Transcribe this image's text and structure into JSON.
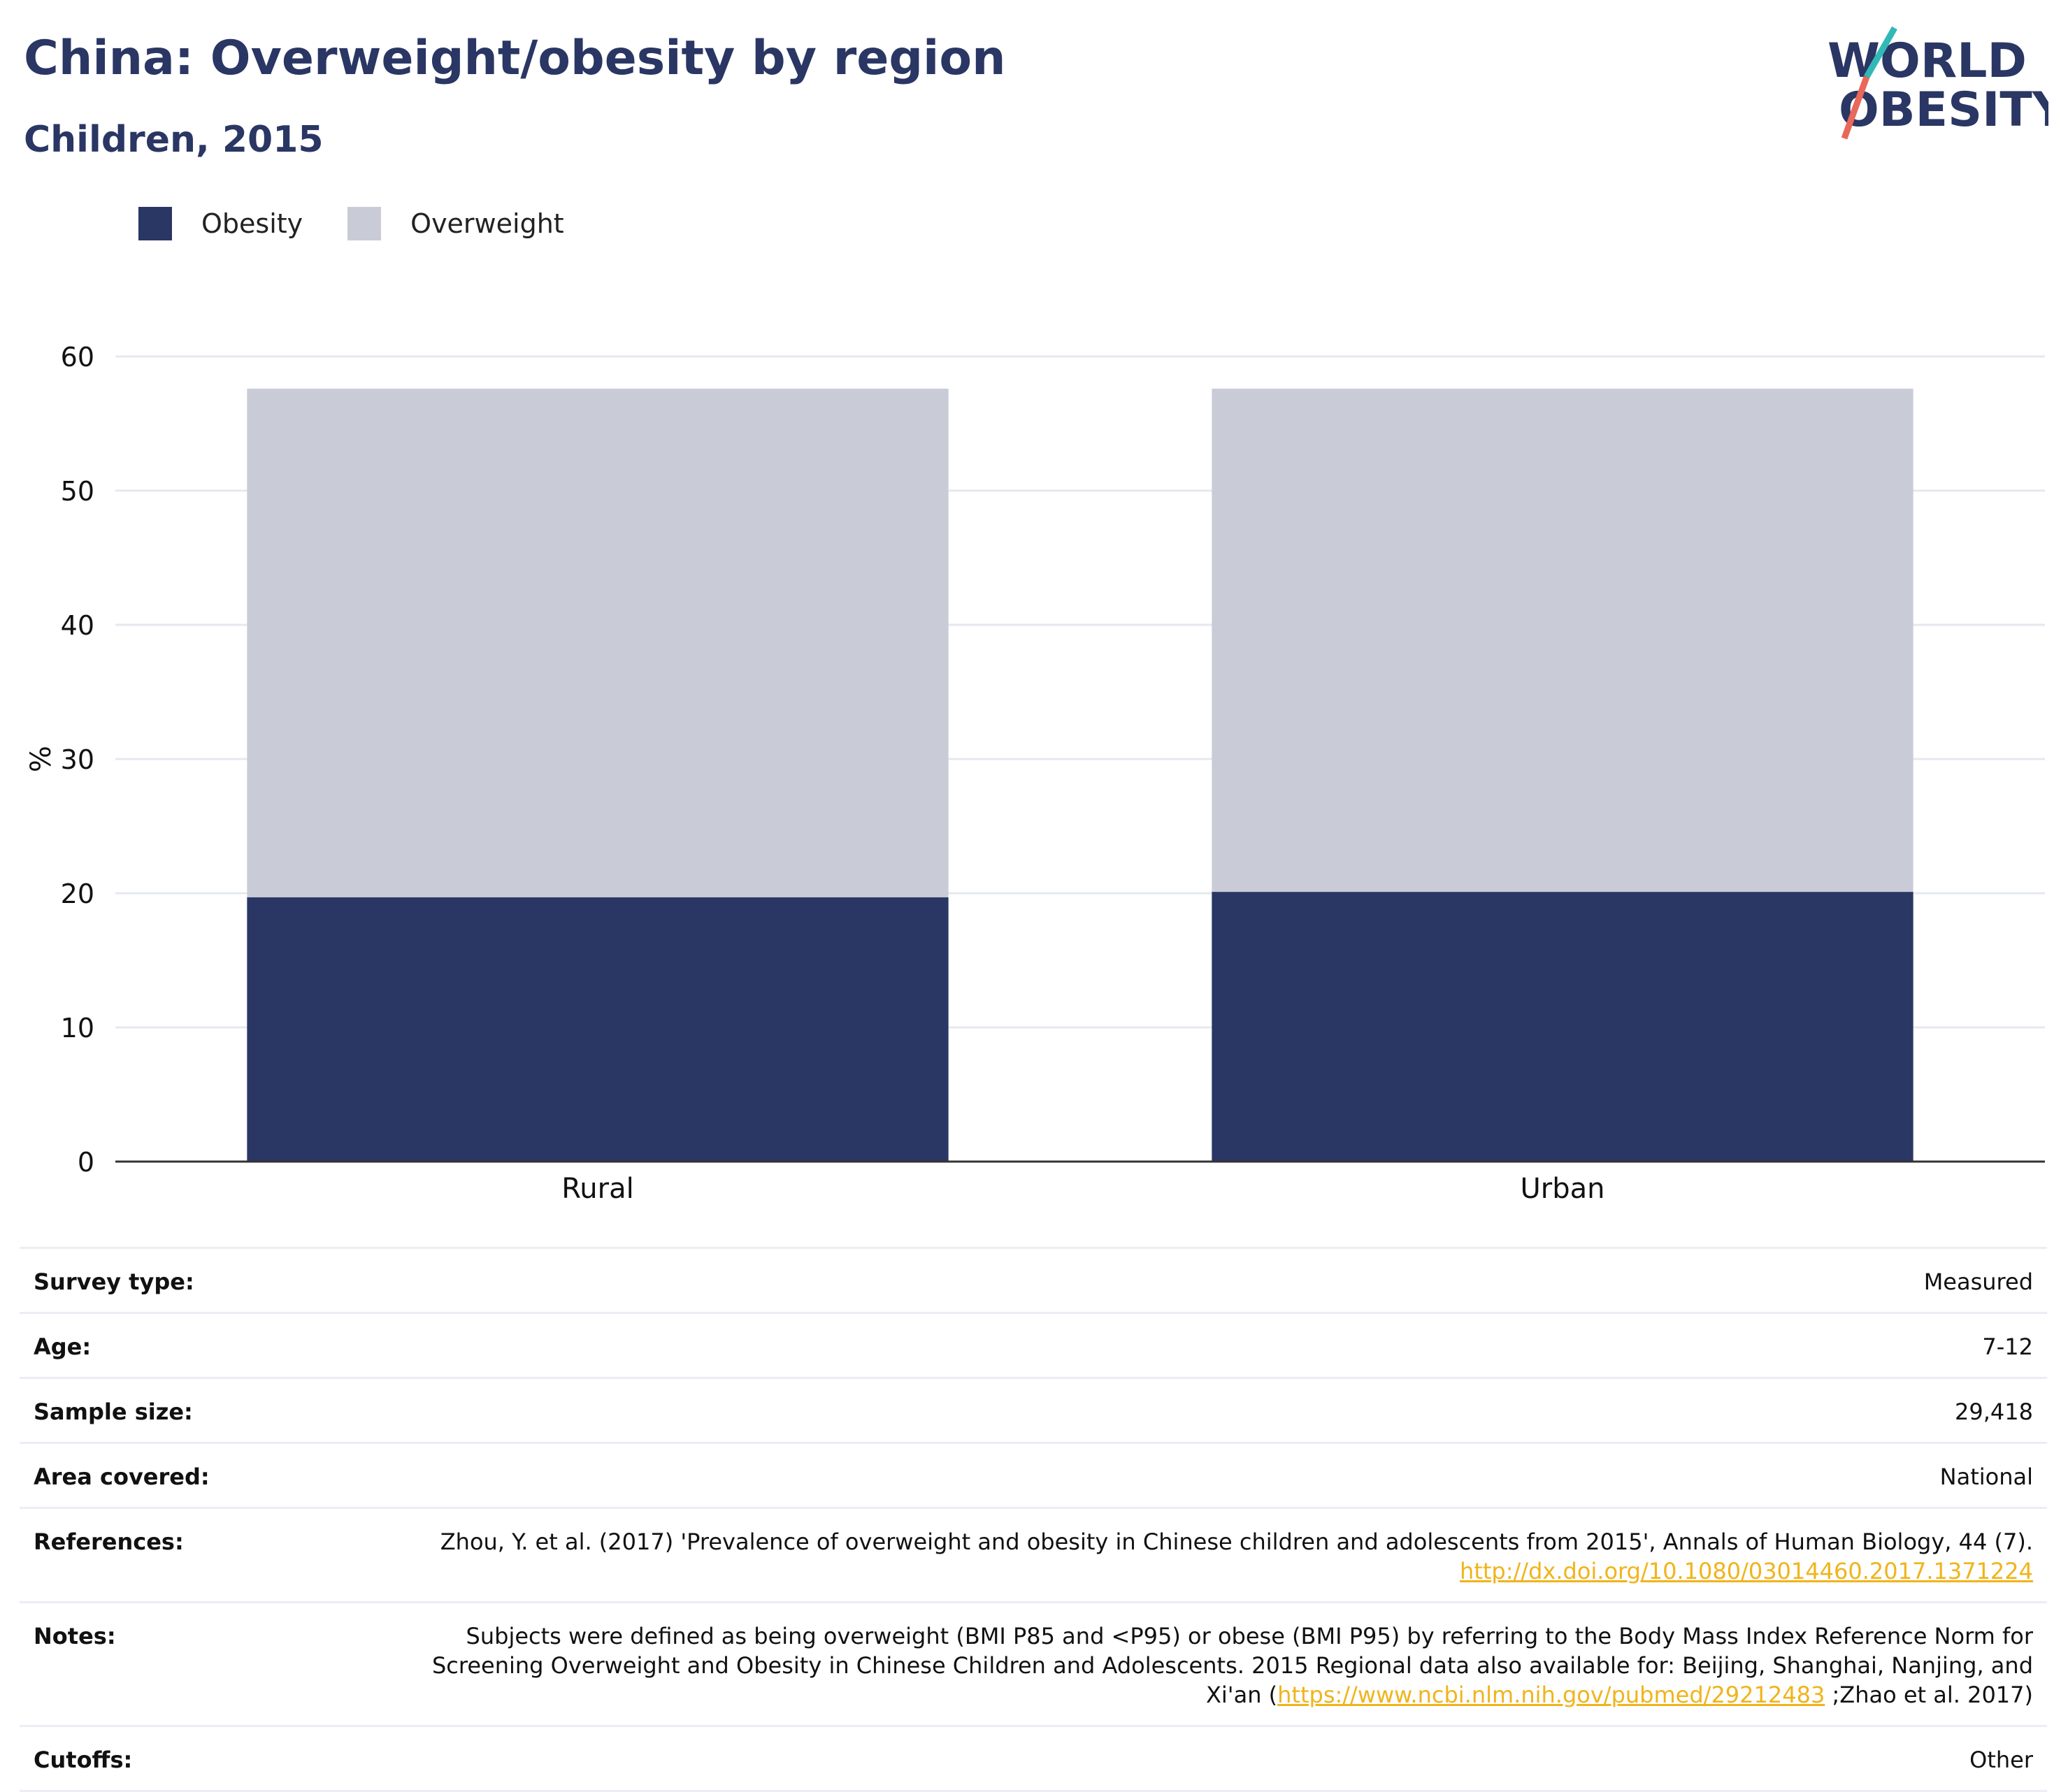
{
  "header": {
    "title": "China: Overweight/obesity by region",
    "subtitle": "Children, 2015"
  },
  "logo": {
    "line1": "WORLD",
    "line2": "OBESITY"
  },
  "legend": [
    {
      "label": "Obesity",
      "color": "#2a3663"
    },
    {
      "label": "Overweight",
      "color": "#c9ccd7"
    }
  ],
  "chart_data": {
    "type": "bar",
    "stacked": true,
    "categories": [
      "Rural",
      "Urban"
    ],
    "series": [
      {
        "name": "Obesity",
        "values": [
          19.7,
          20.1
        ],
        "color": "#2a3663"
      },
      {
        "name": "Overweight",
        "values": [
          37.9,
          37.5
        ],
        "color": "#c9ccd7"
      }
    ],
    "ylabel": "%",
    "ylim": [
      0,
      60
    ],
    "yticks": [
      0,
      10,
      20,
      30,
      40,
      50,
      60
    ],
    "grid": true,
    "legend_position": "top-left"
  },
  "info": {
    "survey_type": {
      "label": "Survey type:",
      "value": "Measured"
    },
    "age": {
      "label": "Age:",
      "value": "7-12"
    },
    "sample_size": {
      "label": "Sample size:",
      "value": "29,418"
    },
    "area": {
      "label": "Area covered:",
      "value": "National"
    },
    "references": {
      "label": "References:",
      "text": "Zhou, Y. et al. (2017) 'Prevalence of overweight and obesity in Chinese children and adolescents from 2015', Annals of Human Biology, 44 (7).",
      "link": "http://dx.doi.org/10.1080/03014460.2017.1371224"
    },
    "notes": {
      "label": "Notes:",
      "text": "Subjects were defined as being overweight (BMI P85 and <P95) or obese (BMI P95) by referring to the Body Mass Index Reference Norm for Screening Overweight and Obesity in Chinese Children and Adolescents. 2015 Regional data also available for: Beijing, Shanghai, Nanjing, and Xi'an (",
      "link": "https://www.ncbi.nlm.nih.gov/pubmed/29212483",
      "tail": ";Zhao et al. 2017)"
    },
    "cutoffs": {
      "label": "Cutoffs:",
      "value": "Other"
    }
  }
}
